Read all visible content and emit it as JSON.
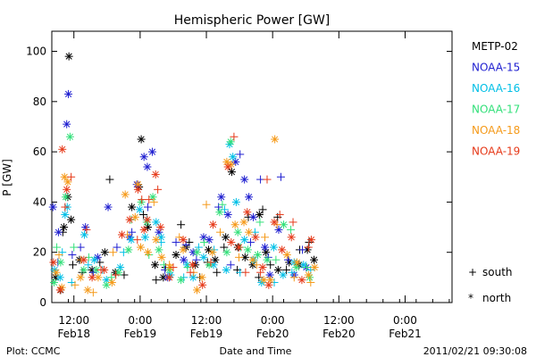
{
  "chart_data": {
    "type": "scatter",
    "title": "Hemispheric Power [GW]",
    "ylabel": "P [GW]",
    "xlabel": "Date and Time",
    "ylim": [
      0,
      108
    ],
    "xlim": [
      "2011-02-18 08:00",
      "2011-02-21 08:30"
    ],
    "y_ticks": [
      0,
      20,
      40,
      60,
      80,
      100
    ],
    "x_ticks": [
      {
        "at": "2011-02-18 12:00",
        "time": "12:00",
        "date": "Feb18"
      },
      {
        "at": "2011-02-19 00:00",
        "time": "0:00",
        "date": "Feb19"
      },
      {
        "at": "2011-02-19 12:00",
        "time": "12:00",
        "date": "Feb19"
      },
      {
        "at": "2011-02-20 00:00",
        "time": "0:00",
        "date": "Feb20"
      },
      {
        "at": "2011-02-20 12:00",
        "time": "12:00",
        "date": "Feb20"
      },
      {
        "at": "2011-02-21 00:00",
        "time": "0:00",
        "date": "Feb21"
      }
    ],
    "legend_position": "right",
    "legend": [
      {
        "name": "METP-02",
        "color": "#000000"
      },
      {
        "name": "NOAA-15",
        "color": "#1f1fd0"
      },
      {
        "name": "NOAA-16",
        "color": "#00bfe6"
      },
      {
        "name": "NOAA-17",
        "color": "#33e07a"
      },
      {
        "name": "NOAA-18",
        "color": "#f59a1a"
      },
      {
        "name": "NOAA-19",
        "color": "#e63a1a"
      }
    ],
    "marker_key": [
      {
        "symbol": "+",
        "label": "south"
      },
      {
        "symbol": "*",
        "label": "north"
      }
    ],
    "series": [
      {
        "name": "METP-02",
        "color": "#000000",
        "north": [
          [
            0.7,
            10
          ],
          [
            1.6,
            5
          ],
          [
            2.2,
            30
          ],
          [
            2.9,
            42
          ],
          [
            3.1,
            98
          ],
          [
            3.5,
            33
          ],
          [
            5,
            17
          ],
          [
            7.3,
            13
          ],
          [
            9.6,
            20
          ],
          [
            11.5,
            12
          ],
          [
            14.5,
            38
          ],
          [
            15.8,
            46
          ],
          [
            16.2,
            65
          ],
          [
            17.4,
            30
          ],
          [
            18.7,
            15
          ],
          [
            20.2,
            10
          ],
          [
            22.5,
            19
          ],
          [
            24.3,
            22
          ],
          [
            26,
            15
          ],
          [
            28.4,
            21
          ],
          [
            29.6,
            17
          ],
          [
            31.5,
            26
          ],
          [
            32.6,
            52
          ],
          [
            33.7,
            22
          ],
          [
            35,
            18
          ],
          [
            36.4,
            15
          ],
          [
            37.6,
            35
          ],
          [
            38.8,
            20
          ],
          [
            41,
            13
          ],
          [
            43,
            16
          ],
          [
            44.8,
            15
          ],
          [
            46.3,
            21
          ],
          [
            47.5,
            17
          ]
        ],
        "south": [
          [
            2,
            28
          ],
          [
            3.8,
            15
          ],
          [
            5.5,
            12
          ],
          [
            8.7,
            16
          ],
          [
            10.5,
            49
          ],
          [
            13.1,
            11
          ],
          [
            16.6,
            35
          ],
          [
            18.9,
            9
          ],
          [
            20.6,
            14
          ],
          [
            23.4,
            31
          ],
          [
            24.9,
            24
          ],
          [
            26.8,
            10
          ],
          [
            28.2,
            16
          ],
          [
            29.9,
            12
          ],
          [
            31.2,
            22
          ],
          [
            33.6,
            13
          ],
          [
            35.6,
            34
          ],
          [
            37.5,
            10
          ],
          [
            38.2,
            37
          ],
          [
            39.6,
            15
          ],
          [
            40.9,
            34
          ],
          [
            42.5,
            13
          ],
          [
            44.9,
            21
          ],
          [
            46.6,
            24
          ]
        ]
      },
      {
        "name": "NOAA-15",
        "color": "#1f1fd0",
        "north": [
          [
            0.2,
            38
          ],
          [
            1.2,
            28
          ],
          [
            2.7,
            71
          ],
          [
            3,
            83
          ],
          [
            6.1,
            30
          ],
          [
            8.3,
            18
          ],
          [
            10.2,
            38
          ],
          [
            14.1,
            26
          ],
          [
            15.4,
            47
          ],
          [
            16.7,
            58
          ],
          [
            17.3,
            54
          ],
          [
            18.2,
            60
          ],
          [
            19.4,
            28
          ],
          [
            21,
            10
          ],
          [
            23.9,
            17
          ],
          [
            25.6,
            20
          ],
          [
            27.5,
            26
          ],
          [
            28.5,
            25
          ],
          [
            30.7,
            42
          ],
          [
            31.9,
            35
          ],
          [
            33.3,
            56
          ],
          [
            34.9,
            49
          ],
          [
            35.7,
            42
          ],
          [
            36.5,
            34
          ],
          [
            38.6,
            22
          ],
          [
            39.5,
            11
          ],
          [
            41.1,
            29
          ],
          [
            43.9,
            11
          ],
          [
            46.1,
            14
          ]
        ],
        "south": [
          [
            1.1,
            16
          ],
          [
            3.7,
            19
          ],
          [
            5.2,
            22
          ],
          [
            7.5,
            12
          ],
          [
            11.8,
            22
          ],
          [
            14.5,
            28
          ],
          [
            17.4,
            38
          ],
          [
            20.5,
            13
          ],
          [
            22.5,
            24
          ],
          [
            24.3,
            23
          ],
          [
            26.2,
            17
          ],
          [
            30.2,
            38
          ],
          [
            32.4,
            15
          ],
          [
            34.1,
            59
          ],
          [
            36,
            24
          ],
          [
            37.8,
            49
          ],
          [
            39.2,
            18
          ],
          [
            41.5,
            50
          ],
          [
            42.8,
            17
          ],
          [
            45.4,
            21
          ]
        ]
      },
      {
        "name": "NOAA-16",
        "color": "#00bfe6",
        "north": [
          [
            0.5,
            13
          ],
          [
            1.5,
            10
          ],
          [
            2.4,
            35
          ],
          [
            2.8,
            38
          ],
          [
            5.9,
            27
          ],
          [
            7.7,
            17
          ],
          [
            9.9,
            9
          ],
          [
            12.4,
            14
          ],
          [
            14.4,
            25
          ],
          [
            15.9,
            37
          ],
          [
            16.9,
            26
          ],
          [
            18.9,
            32
          ],
          [
            19.8,
            26
          ],
          [
            21.5,
            11
          ],
          [
            24.5,
            15
          ],
          [
            25.6,
            10
          ],
          [
            27.5,
            18
          ],
          [
            29.3,
            15
          ],
          [
            31.6,
            13
          ],
          [
            32.2,
            63
          ],
          [
            32.8,
            58
          ],
          [
            33.4,
            40
          ],
          [
            34.9,
            25
          ],
          [
            36.6,
            17
          ],
          [
            38,
            8
          ],
          [
            40.2,
            22
          ],
          [
            41.9,
            11
          ],
          [
            43.9,
            16
          ],
          [
            45.6,
            15
          ]
        ],
        "south": [
          [
            1.9,
            20
          ],
          [
            3.6,
            8
          ],
          [
            6.6,
            15
          ],
          [
            9.2,
            13
          ],
          [
            13,
            20
          ],
          [
            17.2,
            33
          ],
          [
            19.8,
            24
          ],
          [
            23.9,
            10
          ],
          [
            26.6,
            22
          ],
          [
            29.4,
            21
          ],
          [
            31.3,
            37
          ],
          [
            34.1,
            12
          ],
          [
            36.8,
            28
          ],
          [
            40.3,
            8
          ],
          [
            43.5,
            12
          ],
          [
            46.9,
            13
          ]
        ]
      },
      {
        "name": "NOAA-17",
        "color": "#33e07a",
        "north": [
          [
            0.4,
            8
          ],
          [
            1.6,
            16
          ],
          [
            2.5,
            42
          ],
          [
            3.3,
            66
          ],
          [
            5.8,
            13
          ],
          [
            8.1,
            13
          ],
          [
            9.9,
            7
          ],
          [
            12.1,
            12
          ],
          [
            13.9,
            21
          ],
          [
            16.2,
            40
          ],
          [
            17.2,
            32
          ],
          [
            18.3,
            42
          ],
          [
            19.4,
            21
          ],
          [
            21.3,
            13
          ],
          [
            23.4,
            9
          ],
          [
            26.3,
            20
          ],
          [
            28.5,
            15
          ],
          [
            30.4,
            36
          ],
          [
            31.7,
            20
          ],
          [
            32.4,
            64
          ],
          [
            33.7,
            28
          ],
          [
            35.5,
            21
          ],
          [
            37.3,
            19
          ],
          [
            39,
            17
          ],
          [
            42,
            31
          ],
          [
            44.3,
            14
          ],
          [
            46.7,
            10
          ]
        ],
        "south": [
          [
            0.9,
            22
          ],
          [
            4,
            22
          ],
          [
            6.7,
            18
          ],
          [
            10.8,
            10
          ],
          [
            14.4,
            33
          ],
          [
            17.6,
            19
          ],
          [
            20.3,
            15
          ],
          [
            24.6,
            14
          ],
          [
            27.6,
            24
          ],
          [
            30.9,
            39
          ],
          [
            34.2,
            22
          ],
          [
            37.7,
            32
          ],
          [
            40.6,
            17
          ],
          [
            43.3,
            29
          ],
          [
            46.2,
            14
          ]
        ]
      },
      {
        "name": "NOAA-18",
        "color": "#f59a1a",
        "north": [
          [
            0.8,
            12
          ],
          [
            1.8,
            6
          ],
          [
            2.3,
            50
          ],
          [
            2.9,
            48
          ],
          [
            5.2,
            10
          ],
          [
            6.5,
            5
          ],
          [
            8.4,
            10
          ],
          [
            10.9,
            8
          ],
          [
            13.3,
            43
          ],
          [
            15.1,
            34
          ],
          [
            15.6,
            47
          ],
          [
            16.1,
            22
          ],
          [
            17.4,
            20
          ],
          [
            18.9,
            25
          ],
          [
            19.9,
            18
          ],
          [
            21.4,
            14
          ],
          [
            23.8,
            21
          ],
          [
            26.3,
            5
          ],
          [
            27.2,
            10
          ],
          [
            29.1,
            20
          ],
          [
            31.7,
            56
          ],
          [
            32.5,
            55
          ],
          [
            33.2,
            31
          ],
          [
            34.8,
            32
          ],
          [
            35.7,
            28
          ],
          [
            36.4,
            17
          ],
          [
            38.4,
            9
          ],
          [
            39.6,
            9
          ],
          [
            40.4,
            65
          ],
          [
            42.6,
            19
          ],
          [
            44.4,
            16
          ],
          [
            46.5,
            11
          ],
          [
            47.6,
            14
          ]
        ],
        "south": [
          [
            1.3,
            19
          ],
          [
            4.2,
            7
          ],
          [
            5.3,
            17
          ],
          [
            7.5,
            4
          ],
          [
            11.1,
            20
          ],
          [
            13.7,
            27
          ],
          [
            18.5,
            40
          ],
          [
            21.3,
            15
          ],
          [
            23.1,
            26
          ],
          [
            25.7,
            12
          ],
          [
            28,
            39
          ],
          [
            30.5,
            28
          ],
          [
            33.9,
            18
          ],
          [
            37.1,
            15
          ],
          [
            38.6,
            26
          ],
          [
            40.8,
            31
          ],
          [
            43.9,
            10
          ],
          [
            46.9,
            8
          ]
        ]
      },
      {
        "name": "NOAA-19",
        "color": "#e63a1a",
        "north": [
          [
            0.3,
            16
          ],
          [
            1.5,
            5
          ],
          [
            1.9,
            61
          ],
          [
            2.7,
            45
          ],
          [
            5.8,
            17
          ],
          [
            7.3,
            10
          ],
          [
            9.5,
            13
          ],
          [
            12.7,
            27
          ],
          [
            14.1,
            33
          ],
          [
            15.6,
            45
          ],
          [
            16.7,
            29
          ],
          [
            17.3,
            33
          ],
          [
            18.8,
            51
          ],
          [
            19.7,
            30
          ],
          [
            21.3,
            10
          ],
          [
            23.8,
            25
          ],
          [
            25.5,
            15
          ],
          [
            27.3,
            7
          ],
          [
            29.2,
            31
          ],
          [
            31.9,
            54
          ],
          [
            32.5,
            24
          ],
          [
            33.9,
            22
          ],
          [
            35.4,
            36
          ],
          [
            36.9,
            26
          ],
          [
            38.2,
            14
          ],
          [
            39.3,
            7
          ],
          [
            40.3,
            32
          ],
          [
            41.7,
            21
          ],
          [
            43.4,
            26
          ],
          [
            45.3,
            9
          ],
          [
            47,
            25
          ]
        ],
        "south": [
          [
            2.4,
            38
          ],
          [
            3.5,
            50
          ],
          [
            6.3,
            29
          ],
          [
            8.9,
            13
          ],
          [
            11.6,
            11
          ],
          [
            15.5,
            25
          ],
          [
            16.3,
            41
          ],
          [
            17.6,
            41
          ],
          [
            19.2,
            45
          ],
          [
            22,
            14
          ],
          [
            25.1,
            12
          ],
          [
            28.8,
            16
          ],
          [
            33,
            66
          ],
          [
            35.1,
            12
          ],
          [
            37.8,
            12
          ],
          [
            39,
            49
          ],
          [
            41.3,
            35
          ],
          [
            43.7,
            32
          ],
          [
            46.5,
            22
          ]
        ]
      }
    ]
  },
  "footer": {
    "left": "Plot: CCMC",
    "center": "Date and Time",
    "right": "2011/02/21 09:30:08"
  }
}
